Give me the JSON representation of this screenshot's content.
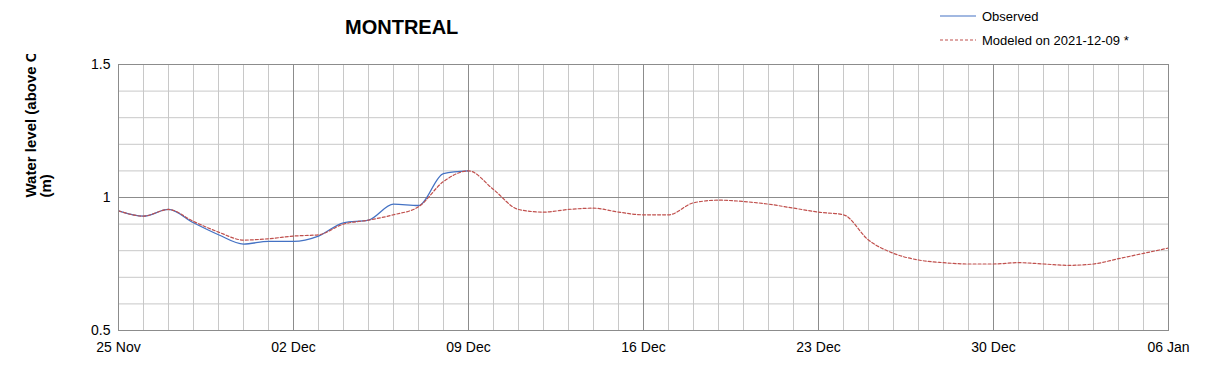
{
  "chart_data": {
    "type": "line",
    "title": "MONTREAL",
    "y_label": "Water level (above C.D.)\n(m)",
    "categories": [
      "25 Nov",
      null,
      null,
      null,
      null,
      null,
      null,
      "02 Dec",
      null,
      null,
      null,
      null,
      null,
      null,
      "09 Dec",
      null,
      null,
      null,
      null,
      null,
      null,
      "16 Dec",
      null,
      null,
      null,
      null,
      null,
      null,
      "23 Dec",
      null,
      null,
      null,
      null,
      null,
      null,
      "30 Dec",
      null,
      null,
      null,
      null,
      null,
      null,
      "06 Jan"
    ],
    "series": [
      {
        "name": "Observed",
        "color": "#4472c4",
        "line_style": "solid",
        "values": [
          0.95,
          0.93,
          0.955,
          0.905,
          0.86,
          0.825,
          0.835,
          0.835,
          0.855,
          0.905,
          0.915,
          0.975,
          0.97,
          1.09,
          1.1,
          null,
          null,
          null,
          null,
          null,
          null,
          null,
          null,
          null,
          null,
          null,
          null,
          null,
          null,
          null,
          null,
          null,
          null,
          null,
          null,
          null,
          null,
          null,
          null,
          null,
          null,
          null,
          null
        ]
      },
      {
        "name": "Modeled on 2021-12-09 *",
        "color": "#c0504d",
        "line_style": "dashed",
        "values": [
          0.95,
          0.93,
          0.955,
          0.91,
          0.87,
          0.84,
          0.845,
          0.855,
          0.86,
          0.9,
          0.915,
          0.935,
          0.965,
          1.06,
          1.1,
          1.03,
          0.955,
          0.945,
          0.955,
          0.96,
          0.945,
          0.935,
          0.935,
          0.98,
          0.99,
          0.985,
          0.975,
          0.96,
          0.945,
          0.935,
          0.84,
          0.79,
          0.765,
          0.755,
          0.75,
          0.75,
          0.755,
          0.75,
          0.745,
          0.75,
          0.77,
          0.79,
          0.81
        ]
      }
    ],
    "ylim": [
      0.5,
      1.5
    ],
    "yticks": [
      0.5,
      1,
      1.5
    ],
    "grid": true,
    "legend": "top-right"
  }
}
